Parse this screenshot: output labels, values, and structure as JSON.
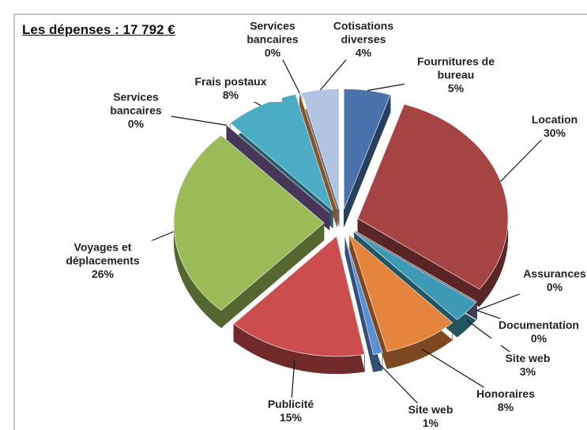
{
  "chart_data": {
    "type": "pie",
    "title": "Les dépenses : 17 792 €",
    "categories": [
      "Fournitures de bureau",
      "Location",
      "Assurances",
      "Documentation",
      "Site web",
      "Honoraires",
      "Site web",
      "Publicité",
      "Voyages et déplacements",
      "Services bancaires",
      "Frais postaux",
      "Services bancaires",
      "Cotisations diverses"
    ],
    "values": [
      5,
      30,
      0,
      0,
      3,
      8,
      1,
      15,
      26,
      0,
      8,
      0,
      4
    ],
    "value_labels": [
      "5%",
      "30%",
      "0%",
      "0%",
      "3%",
      "8%",
      "1%",
      "15%",
      "26%",
      "0%",
      "8%",
      "0%",
      "4%"
    ],
    "colors": [
      "#4a73ac",
      "#a64444",
      "#4aa0b4",
      "#7f6a9a",
      "#3c9ab5",
      "#e5843c",
      "#5b8fd6",
      "#cc4d4d",
      "#9bbb59",
      "#8064a2",
      "#4bacc6",
      "#f79646",
      "#b3c4e0"
    ]
  }
}
